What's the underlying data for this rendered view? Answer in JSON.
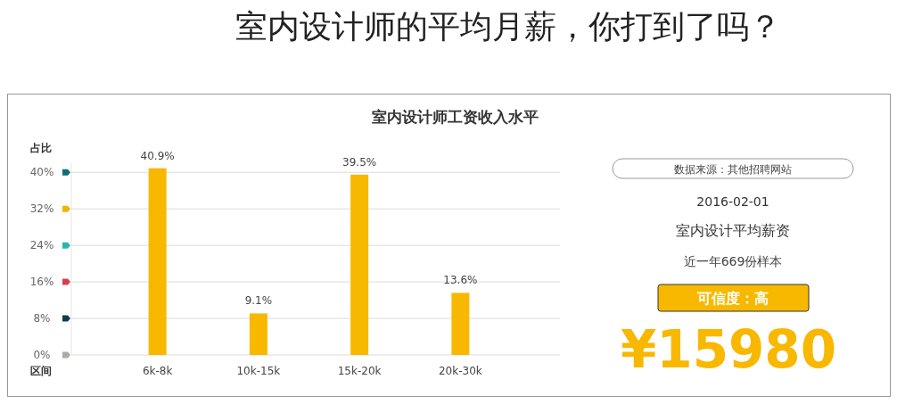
{
  "chart_data": [
    {
      "type": "bar",
      "title": "室内设计师的平均月薪，你打到了吗？",
      "subtitle": "室内设计师工资收入水平",
      "ylabel": "占比",
      "xlabel": "区间",
      "categories": [
        "6k-8k",
        "10k-15k",
        "15k-20k",
        "20k-30k"
      ],
      "values": [
        40.9,
        9.1,
        39.5,
        13.6
      ],
      "value_labels": [
        "40.9%",
        "9.1%",
        "39.5%",
        "13.6%"
      ],
      "color": "#f8b800",
      "ylim": [
        0,
        42
      ],
      "yticks": [
        {
          "value": 0,
          "label": "0%"
        },
        {
          "value": 8,
          "label": "8%"
        },
        {
          "value": 16,
          "label": "16%"
        },
        {
          "value": 24,
          "label": "24%"
        },
        {
          "value": 32,
          "label": "32%"
        },
        {
          "value": 40,
          "label": "40%"
        }
      ],
      "grid": "y"
    },
    {
      "type": "other",
      "annotations": [
        "数据来源：其他招聘网站",
        "2016-02-01",
        "室内设计平均薪资",
        "近一年669份样本",
        "可信度：高",
        "¥15980"
      ]
    }
  ]
}
